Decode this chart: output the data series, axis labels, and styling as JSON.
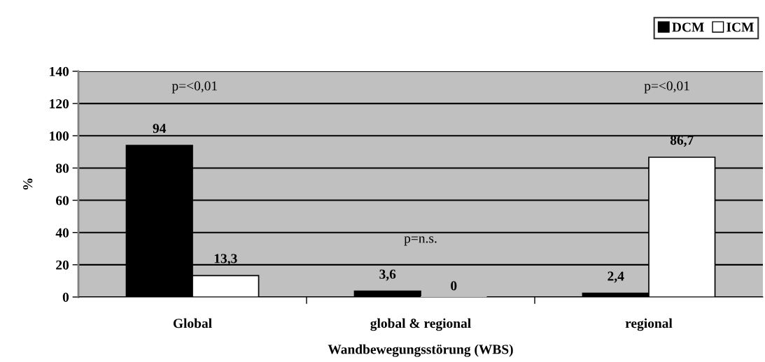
{
  "chart_data": {
    "type": "bar",
    "xlabel": "Wandbewegungsstörung (WBS)",
    "ylabel": "%",
    "categories": [
      "Global",
      "global & regional",
      "regional"
    ],
    "series": [
      {
        "name": "DCM",
        "color": "#000000",
        "values": [
          94,
          3.6,
          2.4
        ],
        "value_labels": [
          "94",
          "3,6",
          "2,4"
        ]
      },
      {
        "name": "ICM",
        "color": "#ffffff",
        "values": [
          13.3,
          0,
          86.7
        ],
        "value_labels": [
          "13,3",
          "0",
          "86,7"
        ]
      }
    ],
    "ylim": [
      0,
      140
    ],
    "yticks": [
      0,
      20,
      40,
      60,
      80,
      100,
      120,
      140
    ],
    "grid": "y",
    "legend": "top right",
    "annotations": [
      "p=<0,01",
      "p=n.s.",
      "p=<0,01"
    ]
  }
}
